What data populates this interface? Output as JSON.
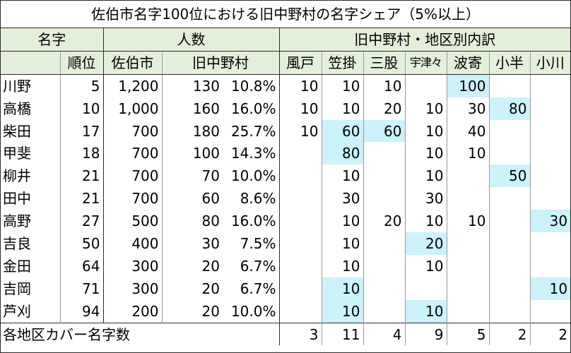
{
  "title": "佐伯市名字100位における旧中野村の名字シェア（5%以上）",
  "headers": {
    "group": {
      "surname": "名字",
      "count": "人数",
      "breakdown": "旧中野村・地区別内訳"
    },
    "columns": [
      "順位",
      "佐伯市",
      "旧中野村",
      "風戸",
      "笠掛",
      "三股",
      "宇津々",
      "波寄",
      "小半",
      "小川"
    ]
  },
  "rows": [
    {
      "name": "川野",
      "rank": "5",
      "saiki": "1,200",
      "nakano": "130",
      "share": "10.8%",
      "d": [
        "10",
        "10",
        "10",
        "",
        "100",
        "",
        ""
      ]
    },
    {
      "name": "高橋",
      "rank": "10",
      "saiki": "1,000",
      "nakano": "160",
      "share": "16.0%",
      "d": [
        "10",
        "10",
        "20",
        "10",
        "30",
        "80",
        ""
      ]
    },
    {
      "name": "柴田",
      "rank": "17",
      "saiki": "700",
      "nakano": "180",
      "share": "25.7%",
      "d": [
        "10",
        "60",
        "60",
        "10",
        "40",
        "",
        ""
      ]
    },
    {
      "name": "甲斐",
      "rank": "18",
      "saiki": "700",
      "nakano": "100",
      "share": "14.3%",
      "d": [
        "",
        "80",
        "",
        "10",
        "10",
        "",
        ""
      ]
    },
    {
      "name": "柳井",
      "rank": "21",
      "saiki": "700",
      "nakano": "70",
      "share": "10.0%",
      "d": [
        "",
        "10",
        "",
        "10",
        "",
        "50",
        ""
      ]
    },
    {
      "name": "田中",
      "rank": "21",
      "saiki": "700",
      "nakano": "60",
      "share": "8.6%",
      "d": [
        "",
        "30",
        "",
        "30",
        "",
        "",
        ""
      ]
    },
    {
      "name": "高野",
      "rank": "27",
      "saiki": "500",
      "nakano": "80",
      "share": "16.0%",
      "d": [
        "",
        "10",
        "20",
        "10",
        "10",
        "",
        "30"
      ]
    },
    {
      "name": "吉良",
      "rank": "50",
      "saiki": "400",
      "nakano": "30",
      "share": "7.5%",
      "d": [
        "",
        "10",
        "",
        "20",
        "",
        "",
        ""
      ]
    },
    {
      "name": "金田",
      "rank": "64",
      "saiki": "300",
      "nakano": "20",
      "share": "6.7%",
      "d": [
        "",
        "10",
        "",
        "10",
        "",
        "",
        ""
      ]
    },
    {
      "name": "吉岡",
      "rank": "71",
      "saiki": "300",
      "nakano": "20",
      "share": "6.7%",
      "d": [
        "",
        "10",
        "",
        "",
        "",
        "",
        "10"
      ]
    },
    {
      "name": "芦刈",
      "rank": "94",
      "saiki": "200",
      "nakano": "20",
      "share": "10.0%",
      "d": [
        "",
        "10",
        "",
        "10",
        "",
        "",
        ""
      ]
    }
  ],
  "highlight": [
    [
      4
    ],
    [
      5
    ],
    [
      1,
      2
    ],
    [
      1
    ],
    [
      5
    ],
    [],
    [
      6
    ],
    [
      3
    ],
    [],
    [
      1,
      6
    ],
    [
      1,
      3
    ]
  ],
  "footer": {
    "label": "各地区カバー名字数",
    "values": [
      "3",
      "11",
      "4",
      "9",
      "5",
      "2",
      "2"
    ]
  },
  "colors": {
    "header_bg": "#e4efda",
    "highlight_bg": "#ccf2fb",
    "border": "#2b2b2b"
  }
}
